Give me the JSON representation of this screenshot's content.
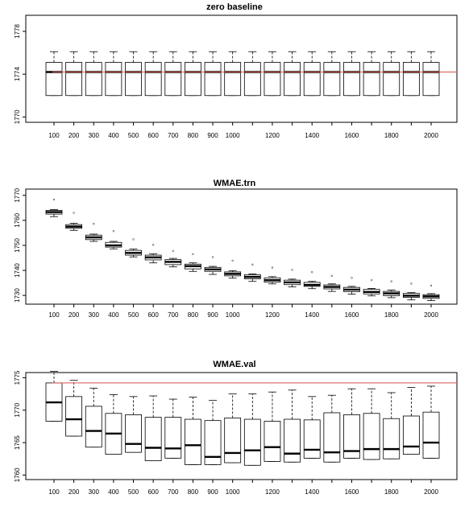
{
  "chart_data": [
    {
      "type": "box",
      "title": "zero baseline",
      "xlabel": "",
      "ylabel": "",
      "ylim": [
        1769.5,
        1779.5
      ],
      "yticks": [
        1770,
        1774,
        1778
      ],
      "x_tick_labels": [
        "100",
        "200",
        "300",
        "400",
        "500",
        "600",
        "700",
        "800",
        "900",
        "1000",
        "1200",
        "1400",
        "1600",
        "1800",
        "2000"
      ],
      "x_tick_positions": [
        100,
        200,
        300,
        400,
        500,
        600,
        700,
        800,
        900,
        1000,
        1200,
        1400,
        1600,
        1800,
        2000
      ],
      "x": [
        100,
        200,
        300,
        400,
        500,
        600,
        700,
        800,
        900,
        1000,
        1100,
        1200,
        1300,
        1400,
        1500,
        1600,
        1700,
        1800,
        1900,
        2000
      ],
      "reference_line": {
        "y": 1774.2,
        "color": "#d9534f"
      },
      "boxes": [
        {
          "x": 100,
          "whislo": 1772.0,
          "q1": 1772.0,
          "med": 1774.2,
          "q3": 1775.1,
          "whishi": 1776.1,
          "outliers": []
        },
        {
          "x": 200,
          "whislo": 1772.0,
          "q1": 1772.0,
          "med": 1774.2,
          "q3": 1775.1,
          "whishi": 1776.1,
          "outliers": []
        },
        {
          "x": 300,
          "whislo": 1772.0,
          "q1": 1772.0,
          "med": 1774.2,
          "q3": 1775.1,
          "whishi": 1776.1,
          "outliers": []
        },
        {
          "x": 400,
          "whislo": 1772.0,
          "q1": 1772.0,
          "med": 1774.2,
          "q3": 1775.1,
          "whishi": 1776.1,
          "outliers": []
        },
        {
          "x": 500,
          "whislo": 1772.0,
          "q1": 1772.0,
          "med": 1774.2,
          "q3": 1775.1,
          "whishi": 1776.1,
          "outliers": []
        },
        {
          "x": 600,
          "whislo": 1772.0,
          "q1": 1772.0,
          "med": 1774.2,
          "q3": 1775.1,
          "whishi": 1776.1,
          "outliers": []
        },
        {
          "x": 700,
          "whislo": 1772.0,
          "q1": 1772.0,
          "med": 1774.2,
          "q3": 1775.1,
          "whishi": 1776.1,
          "outliers": []
        },
        {
          "x": 800,
          "whislo": 1772.0,
          "q1": 1772.0,
          "med": 1774.2,
          "q3": 1775.1,
          "whishi": 1776.1,
          "outliers": []
        },
        {
          "x": 900,
          "whislo": 1772.0,
          "q1": 1772.0,
          "med": 1774.2,
          "q3": 1775.1,
          "whishi": 1776.1,
          "outliers": []
        },
        {
          "x": 1000,
          "whislo": 1772.0,
          "q1": 1772.0,
          "med": 1774.2,
          "q3": 1775.1,
          "whishi": 1776.1,
          "outliers": []
        },
        {
          "x": 1100,
          "whislo": 1772.0,
          "q1": 1772.0,
          "med": 1774.2,
          "q3": 1775.1,
          "whishi": 1776.1,
          "outliers": []
        },
        {
          "x": 1200,
          "whislo": 1772.0,
          "q1": 1772.0,
          "med": 1774.2,
          "q3": 1775.1,
          "whishi": 1776.1,
          "outliers": []
        },
        {
          "x": 1300,
          "whislo": 1772.0,
          "q1": 1772.0,
          "med": 1774.2,
          "q3": 1775.1,
          "whishi": 1776.1,
          "outliers": []
        },
        {
          "x": 1400,
          "whislo": 1772.0,
          "q1": 1772.0,
          "med": 1774.2,
          "q3": 1775.1,
          "whishi": 1776.1,
          "outliers": []
        },
        {
          "x": 1500,
          "whislo": 1772.0,
          "q1": 1772.0,
          "med": 1774.2,
          "q3": 1775.1,
          "whishi": 1776.1,
          "outliers": []
        },
        {
          "x": 1600,
          "whislo": 1772.0,
          "q1": 1772.0,
          "med": 1774.2,
          "q3": 1775.1,
          "whishi": 1776.1,
          "outliers": []
        },
        {
          "x": 1700,
          "whislo": 1772.0,
          "q1": 1772.0,
          "med": 1774.2,
          "q3": 1775.1,
          "whishi": 1776.1,
          "outliers": []
        },
        {
          "x": 1800,
          "whislo": 1772.0,
          "q1": 1772.0,
          "med": 1774.2,
          "q3": 1775.1,
          "whishi": 1776.1,
          "outliers": []
        },
        {
          "x": 1900,
          "whislo": 1772.0,
          "q1": 1772.0,
          "med": 1774.2,
          "q3": 1775.1,
          "whishi": 1776.1,
          "outliers": []
        },
        {
          "x": 2000,
          "whislo": 1772.0,
          "q1": 1772.0,
          "med": 1774.2,
          "q3": 1775.1,
          "whishi": 1776.1,
          "outliers": []
        }
      ]
    },
    {
      "type": "box",
      "title": "WMAE.trn",
      "xlabel": "",
      "ylabel": "",
      "ylim": [
        1726.5,
        1772.5
      ],
      "yticks": [
        1730,
        1740,
        1750,
        1760,
        1770
      ],
      "x_tick_labels": [
        "100",
        "200",
        "300",
        "400",
        "500",
        "600",
        "700",
        "800",
        "900",
        "1000",
        "1200",
        "1400",
        "1600",
        "1800",
        "2000"
      ],
      "x_tick_positions": [
        100,
        200,
        300,
        400,
        500,
        600,
        700,
        800,
        900,
        1000,
        1200,
        1400,
        1600,
        1800,
        2000
      ],
      "x": [
        100,
        200,
        300,
        400,
        500,
        600,
        700,
        800,
        900,
        1000,
        1100,
        1200,
        1300,
        1400,
        1500,
        1600,
        1700,
        1800,
        1900,
        2000
      ],
      "boxes": [
        {
          "x": 100,
          "whislo": 1761.5,
          "q1": 1762.5,
          "med": 1763.3,
          "q3": 1764.0,
          "whishi": 1764.3,
          "outliers": [
            1768.3
          ]
        },
        {
          "x": 200,
          "whislo": 1756.0,
          "q1": 1756.8,
          "med": 1757.5,
          "q3": 1758.3,
          "whishi": 1758.8,
          "outliers": [
            1763.0
          ]
        },
        {
          "x": 300,
          "whislo": 1751.6,
          "q1": 1752.3,
          "med": 1753.2,
          "q3": 1754.1,
          "whishi": 1754.5,
          "outliers": [
            1758.6
          ]
        },
        {
          "x": 400,
          "whislo": 1748.6,
          "q1": 1749.3,
          "med": 1750.0,
          "q3": 1751.2,
          "whishi": 1751.6,
          "outliers": [
            1755.7
          ]
        },
        {
          "x": 500,
          "whislo": 1745.4,
          "q1": 1746.1,
          "med": 1747.0,
          "q3": 1748.0,
          "whishi": 1748.5,
          "outliers": [
            1752.4
          ]
        },
        {
          "x": 600,
          "whislo": 1743.0,
          "q1": 1744.2,
          "med": 1745.2,
          "q3": 1746.1,
          "whishi": 1746.6,
          "outliers": [
            1750.2
          ]
        },
        {
          "x": 700,
          "whislo": 1741.4,
          "q1": 1742.3,
          "med": 1743.4,
          "q3": 1744.3,
          "whishi": 1744.8,
          "outliers": [
            1747.8
          ]
        },
        {
          "x": 800,
          "whislo": 1739.6,
          "q1": 1740.6,
          "med": 1741.7,
          "q3": 1742.5,
          "whishi": 1743.0,
          "outliers": [
            1746.5
          ]
        },
        {
          "x": 900,
          "whislo": 1738.4,
          "q1": 1739.6,
          "med": 1740.4,
          "q3": 1741.2,
          "whishi": 1741.6,
          "outliers": [
            1745.3
          ]
        },
        {
          "x": 1000,
          "whislo": 1736.9,
          "q1": 1737.8,
          "med": 1738.6,
          "q3": 1739.4,
          "whishi": 1739.9,
          "outliers": [
            1743.9
          ]
        },
        {
          "x": 1100,
          "whislo": 1735.6,
          "q1": 1736.6,
          "med": 1737.4,
          "q3": 1738.3,
          "whishi": 1738.6,
          "outliers": [
            1742.3
          ]
        },
        {
          "x": 1200,
          "whislo": 1734.6,
          "q1": 1735.3,
          "med": 1736.1,
          "q3": 1737.0,
          "whishi": 1737.5,
          "outliers": [
            1741.1
          ]
        },
        {
          "x": 1300,
          "whislo": 1733.4,
          "q1": 1734.3,
          "med": 1735.2,
          "q3": 1736.1,
          "whishi": 1736.5,
          "outliers": [
            1740.2
          ]
        },
        {
          "x": 1400,
          "whislo": 1732.7,
          "q1": 1733.6,
          "med": 1734.2,
          "q3": 1735.2,
          "whishi": 1735.6,
          "outliers": [
            1739.3
          ]
        },
        {
          "x": 1500,
          "whislo": 1731.6,
          "q1": 1732.6,
          "med": 1733.4,
          "q3": 1734.2,
          "whishi": 1734.6,
          "outliers": [
            1737.8
          ]
        },
        {
          "x": 1600,
          "whislo": 1730.5,
          "q1": 1731.5,
          "med": 1732.3,
          "q3": 1733.2,
          "whishi": 1733.6,
          "outliers": [
            1737.0
          ]
        },
        {
          "x": 1700,
          "whislo": 1729.8,
          "q1": 1730.6,
          "med": 1731.4,
          "q3": 1732.4,
          "whishi": 1732.8,
          "outliers": [
            1736.1
          ]
        },
        {
          "x": 1800,
          "whislo": 1729.1,
          "q1": 1729.9,
          "med": 1730.8,
          "q3": 1731.6,
          "whishi": 1732.1,
          "outliers": [
            1735.6
          ]
        },
        {
          "x": 1900,
          "whislo": 1728.2,
          "q1": 1729.2,
          "med": 1729.9,
          "q3": 1730.8,
          "whishi": 1731.1,
          "outliers": [
            1734.7
          ]
        },
        {
          "x": 2000,
          "whislo": 1727.9,
          "q1": 1728.8,
          "med": 1729.6,
          "q3": 1730.3,
          "whishi": 1730.7,
          "outliers": [
            1733.9
          ]
        }
      ]
    },
    {
      "type": "box",
      "title": "WMAE.val",
      "xlabel": "",
      "ylabel": "",
      "ylim": [
        1759.3,
        1775.8
      ],
      "yticks": [
        1760,
        1765,
        1770,
        1775
      ],
      "x_tick_labels": [
        "100",
        "200",
        "300",
        "400",
        "500",
        "600",
        "700",
        "800",
        "900",
        "1000",
        "1200",
        "1400",
        "1600",
        "1800",
        "2000"
      ],
      "x_tick_positions": [
        100,
        200,
        300,
        400,
        500,
        600,
        700,
        800,
        900,
        1000,
        1200,
        1400,
        1600,
        1800,
        2000
      ],
      "x": [
        100,
        200,
        300,
        400,
        500,
        600,
        700,
        800,
        900,
        1000,
        1100,
        1200,
        1300,
        1400,
        1500,
        1600,
        1700,
        1800,
        1900,
        2000
      ],
      "reference_line": {
        "y": 1774.2,
        "color": "#d9534f"
      },
      "boxes": [
        {
          "x": 100,
          "whislo": 1768.3,
          "q1": 1768.3,
          "med": 1771.2,
          "q3": 1774.2,
          "whishi": 1776.0,
          "outliers": []
        },
        {
          "x": 200,
          "whislo": 1766.0,
          "q1": 1766.0,
          "med": 1768.6,
          "q3": 1772.1,
          "whishi": 1774.6,
          "outliers": []
        },
        {
          "x": 300,
          "whislo": 1764.3,
          "q1": 1764.3,
          "med": 1766.8,
          "q3": 1770.6,
          "whishi": 1773.4,
          "outliers": []
        },
        {
          "x": 400,
          "whislo": 1763.2,
          "q1": 1763.2,
          "med": 1766.4,
          "q3": 1769.5,
          "whishi": 1772.4,
          "outliers": []
        },
        {
          "x": 500,
          "whislo": 1763.5,
          "q1": 1763.5,
          "med": 1764.8,
          "q3": 1769.3,
          "whishi": 1772.1,
          "outliers": []
        },
        {
          "x": 600,
          "whislo": 1762.2,
          "q1": 1762.2,
          "med": 1764.2,
          "q3": 1768.9,
          "whishi": 1772.2,
          "outliers": []
        },
        {
          "x": 700,
          "whislo": 1762.6,
          "q1": 1762.6,
          "med": 1764.1,
          "q3": 1768.9,
          "whishi": 1771.7,
          "outliers": []
        },
        {
          "x": 800,
          "whislo": 1761.6,
          "q1": 1761.6,
          "med": 1764.6,
          "q3": 1768.6,
          "whishi": 1772.0,
          "outliers": []
        },
        {
          "x": 900,
          "whislo": 1761.6,
          "q1": 1761.6,
          "med": 1762.8,
          "q3": 1768.4,
          "whishi": 1771.5,
          "outliers": []
        },
        {
          "x": 1000,
          "whislo": 1761.9,
          "q1": 1761.9,
          "med": 1763.4,
          "q3": 1768.8,
          "whishi": 1772.5,
          "outliers": []
        },
        {
          "x": 1100,
          "whislo": 1761.5,
          "q1": 1761.5,
          "med": 1763.8,
          "q3": 1768.6,
          "whishi": 1772.5,
          "outliers": []
        },
        {
          "x": 1200,
          "whislo": 1762.1,
          "q1": 1762.1,
          "med": 1764.3,
          "q3": 1768.3,
          "whishi": 1772.8,
          "outliers": []
        },
        {
          "x": 1300,
          "whislo": 1762.0,
          "q1": 1762.0,
          "med": 1763.3,
          "q3": 1768.6,
          "whishi": 1773.1,
          "outliers": []
        },
        {
          "x": 1400,
          "whislo": 1762.6,
          "q1": 1762.6,
          "med": 1763.9,
          "q3": 1768.5,
          "whishi": 1772.1,
          "outliers": []
        },
        {
          "x": 1500,
          "whislo": 1762.0,
          "q1": 1762.0,
          "med": 1763.5,
          "q3": 1769.6,
          "whishi": 1772.3,
          "outliers": []
        },
        {
          "x": 1600,
          "whislo": 1762.6,
          "q1": 1762.6,
          "med": 1763.7,
          "q3": 1769.3,
          "whishi": 1773.3,
          "outliers": []
        },
        {
          "x": 1700,
          "whislo": 1762.4,
          "q1": 1762.4,
          "med": 1764.0,
          "q3": 1769.5,
          "whishi": 1773.3,
          "outliers": []
        },
        {
          "x": 1800,
          "whislo": 1762.5,
          "q1": 1762.5,
          "med": 1764.0,
          "q3": 1768.7,
          "whishi": 1772.7,
          "outliers": []
        },
        {
          "x": 1900,
          "whislo": 1763.2,
          "q1": 1763.2,
          "med": 1764.4,
          "q3": 1769.1,
          "whishi": 1773.5,
          "outliers": []
        },
        {
          "x": 2000,
          "whislo": 1762.6,
          "q1": 1762.6,
          "med": 1765.0,
          "q3": 1769.7,
          "whishi": 1773.7,
          "outliers": []
        }
      ]
    }
  ]
}
